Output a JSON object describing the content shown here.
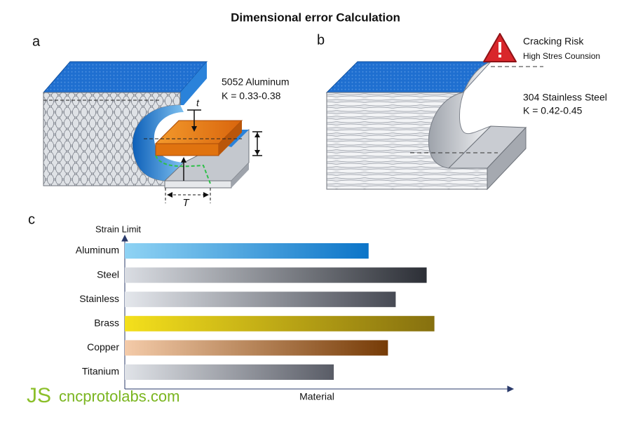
{
  "title": "Dimensional error Calculation",
  "panel_a": {
    "label": "a",
    "material": "5052 Aluminum",
    "k_range": "K = 0.33-0.38",
    "thickness_label": "t",
    "width_label": "T"
  },
  "panel_b": {
    "label": "b",
    "warning": "Cracking Risk",
    "warning_detail": "High Stres Counsion",
    "material": "304 Stainless Steel",
    "k_range": "K = 0.42-0.45"
  },
  "chart_data": {
    "type": "bar",
    "orientation": "horizontal",
    "panel_label": "c",
    "ylabel": "Strain Limit",
    "xlabel": "Material",
    "categories": [
      "Aluminum",
      "Steel",
      "Stainless",
      "Brass",
      "Copper",
      "Titanium"
    ],
    "values": [
      63,
      78,
      70,
      80,
      68,
      54
    ],
    "xlim": [
      0,
      100
    ],
    "colors": [
      [
        "#8fd3f4",
        "#0b74c8"
      ],
      [
        "#dadde3",
        "#2c2f36"
      ],
      [
        "#e4e7ec",
        "#474a54"
      ],
      [
        "#f4e01c",
        "#86700f"
      ],
      [
        "#f4cba9",
        "#763b06"
      ],
      [
        "#e0e3e8",
        "#595c66"
      ]
    ]
  },
  "watermark": {
    "logo": "JS",
    "site": "cncprotolabs.com"
  }
}
